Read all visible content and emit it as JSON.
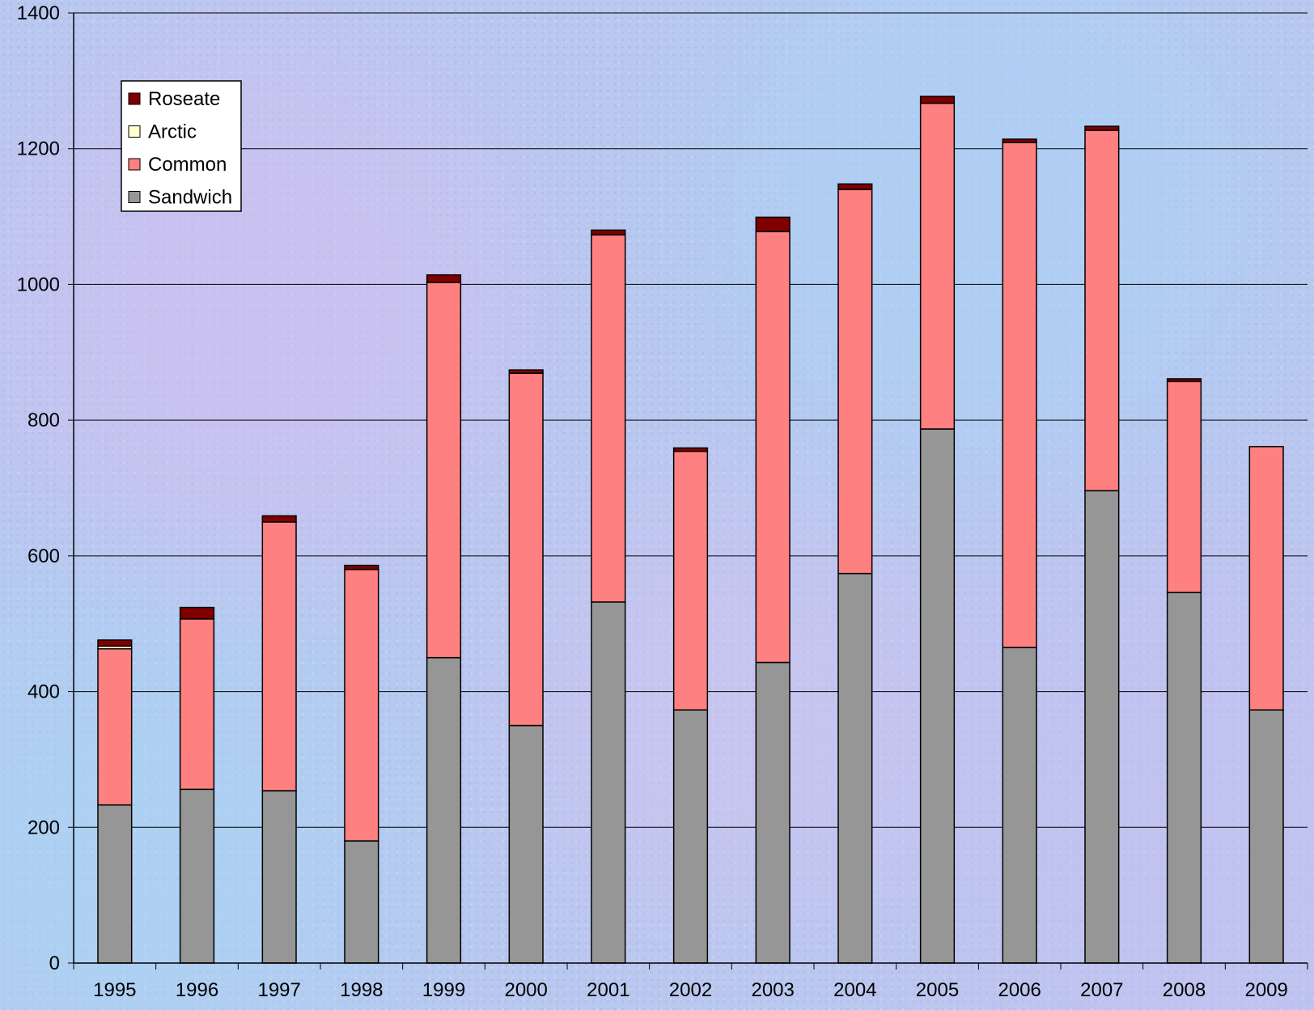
{
  "chart_data": {
    "type": "bar",
    "stacked": true,
    "categories": [
      "1995",
      "1996",
      "1997",
      "1998",
      "1999",
      "2000",
      "2001",
      "2002",
      "2003",
      "2004",
      "2005",
      "2006",
      "2007",
      "2008",
      "2009"
    ],
    "series": [
      {
        "name": "Sandwich",
        "color": "#969696",
        "values": [
          233,
          256,
          254,
          180,
          450,
          350,
          532,
          373,
          443,
          574,
          787,
          465,
          696,
          546,
          373
        ]
      },
      {
        "name": "Common",
        "color": "#ff8080",
        "values": [
          230,
          251,
          396,
          400,
          553,
          519,
          541,
          381,
          635,
          566,
          480,
          744,
          531,
          311,
          388
        ]
      },
      {
        "name": "Arctic",
        "color": "#ffffcc",
        "values": [
          4,
          0,
          0,
          0,
          0,
          0,
          0,
          0,
          0,
          0,
          0,
          0,
          0,
          0,
          0
        ]
      },
      {
        "name": "Roseate",
        "color": "#800000",
        "values": [
          9,
          17,
          9,
          6,
          11,
          5,
          7,
          5,
          21,
          8,
          10,
          5,
          6,
          4,
          0
        ]
      }
    ],
    "ylim": [
      0,
      1400
    ],
    "yticks": [
      0,
      200,
      400,
      600,
      800,
      1000,
      1200,
      1400
    ],
    "legend_order": [
      "Roseate",
      "Arctic",
      "Common",
      "Sandwich"
    ],
    "legend_position": "top-left",
    "grid": true
  }
}
